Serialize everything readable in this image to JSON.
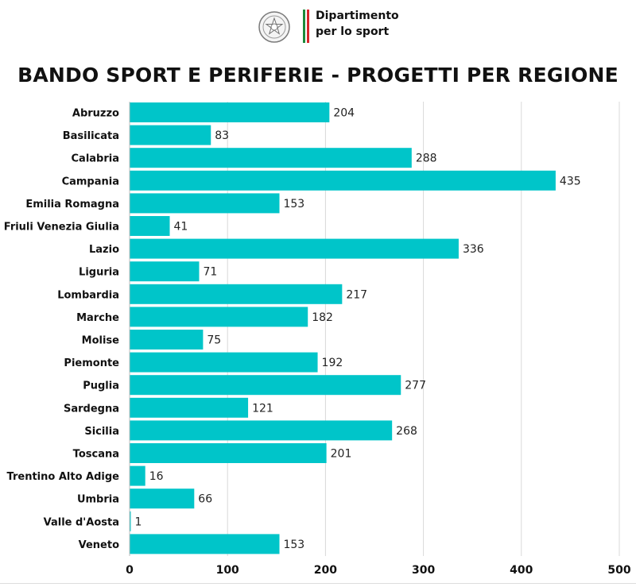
{
  "header": {
    "org_line1": "Dipartimento",
    "org_line2": "per lo sport",
    "emblem_icon": "italian-republic-emblem-icon",
    "flag_colors": [
      "#1b8a3a",
      "#d6262b"
    ]
  },
  "colors": {
    "bar": "#00c5c9",
    "grid": "#d9d9d9"
  },
  "chart_data": {
    "type": "bar",
    "orientation": "horizontal",
    "title": "BANDO SPORT E PERIFERIE - PROGETTI PER REGIONE",
    "categories": [
      "Abruzzo",
      "Basilicata",
      "Calabria",
      "Campania",
      "Emilia Romagna",
      "Friuli Venezia Giulia",
      "Lazio",
      "Liguria",
      "Lombardia",
      "Marche",
      "Molise",
      "Piemonte",
      "Puglia",
      "Sardegna",
      "Sicilia",
      "Toscana",
      "Trentino Alto Adige",
      "Umbria",
      "Valle d'Aosta",
      "Veneto"
    ],
    "values": [
      204,
      83,
      288,
      435,
      153,
      41,
      336,
      71,
      217,
      182,
      75,
      192,
      277,
      121,
      268,
      201,
      16,
      66,
      1,
      153
    ],
    "xlim": [
      0,
      500
    ],
    "xticks": [
      0,
      100,
      200,
      300,
      400,
      500
    ],
    "grid": true,
    "data_labels": true
  }
}
